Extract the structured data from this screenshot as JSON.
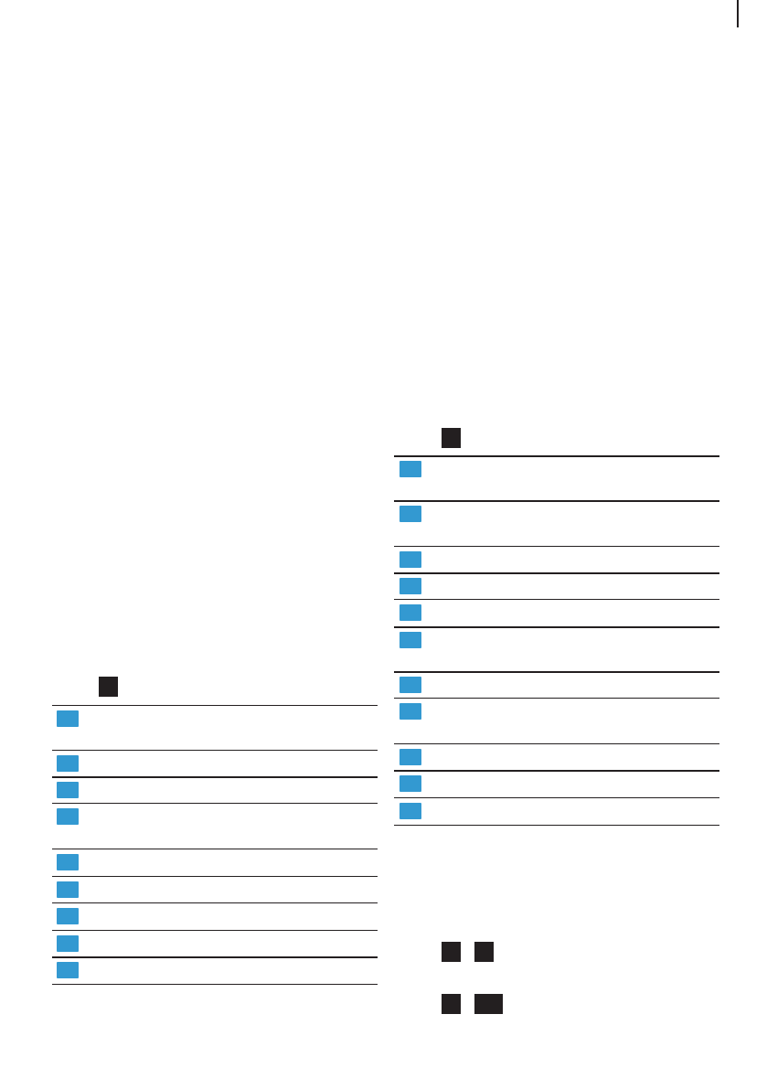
{
  "colors": {
    "marker_blue": "#3399d1",
    "marker_dark": "#231f20",
    "rule": "#231f20",
    "page": "#ffffff"
  },
  "left_table": {
    "row_count": 9
  },
  "right_table": {
    "row_count": 11
  },
  "key_combos": [
    {
      "keys": 2
    },
    {
      "keys": 2
    }
  ]
}
